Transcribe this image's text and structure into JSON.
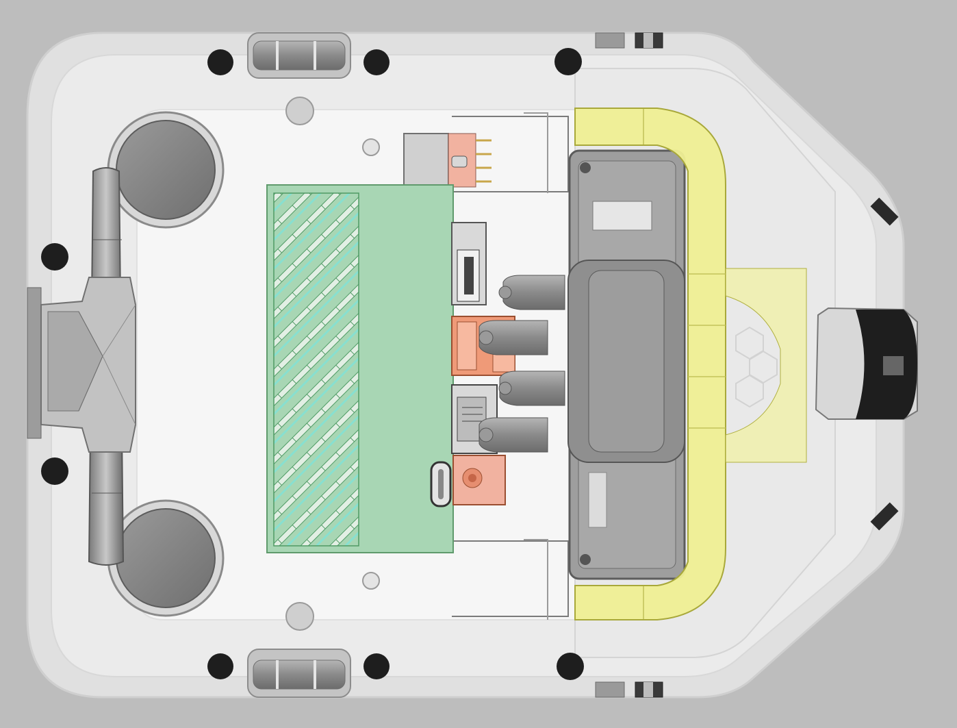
{
  "scene": {
    "kind": "cad-render-top-view",
    "colors": {
      "background": "#bdbdbd",
      "shell": "#e9e9e9",
      "board": "#a8d6b4",
      "yellow_bumper": "#efef94",
      "orange_connector": "#ef9a78",
      "dark_part": "#8c8c8c",
      "hole": "#1e1e1e"
    },
    "icons": [
      "mounting-hole-icon",
      "heatsink-fins-icon",
      "usb-c-port-icon",
      "ethernet-port-icon",
      "hdmi-port-icon"
    ]
  }
}
